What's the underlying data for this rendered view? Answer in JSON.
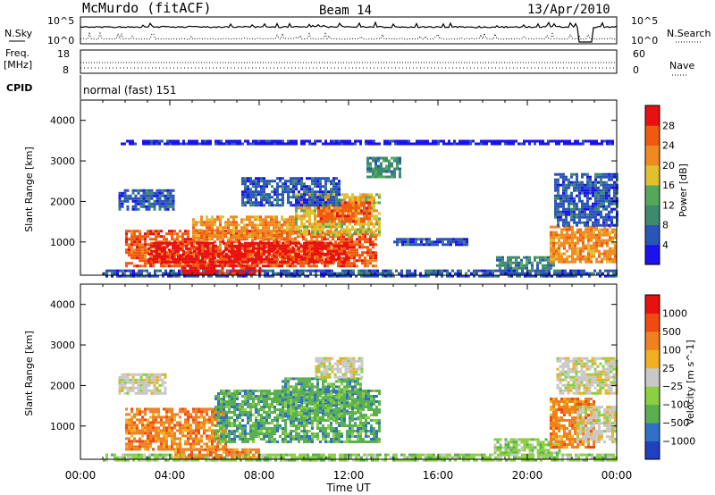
{
  "header": {
    "station": "McMurdo (fitACF)",
    "beam": "Beam 14",
    "date": "13/Apr/2010"
  },
  "top_panels": {
    "nsky": {
      "label": "N.Sky",
      "ticks": [
        "10^5",
        "10^0"
      ],
      "right_label": "N.Search",
      "right_ticks": [
        "10^5",
        "10^0"
      ]
    },
    "freq": {
      "label_line1": "Freq.",
      "label_line2": "[MHz]",
      "ticks": [
        "18",
        "8"
      ],
      "right_label": "Nave",
      "right_ticks": [
        "60",
        "0"
      ]
    },
    "cpid": {
      "label": "CPID",
      "value": "normal (fast) 151"
    }
  },
  "x_axis": {
    "label": "Time UT",
    "ticks": [
      "00:00",
      "04:00",
      "08:00",
      "12:00",
      "16:00",
      "20:00",
      "00:00"
    ]
  },
  "chart_data": [
    {
      "type": "heatmap",
      "name": "power",
      "xlabel": "Time UT",
      "ylabel": "Slant Range [km]",
      "xlim": [
        0,
        24
      ],
      "ylim": [
        180,
        4500
      ],
      "yticks": [
        "1000",
        "2000",
        "3000",
        "4000"
      ],
      "colorbar": {
        "label": "Power [dB]",
        "ticks": [
          "4",
          "8",
          "12",
          "16",
          "20",
          "24",
          "28"
        ],
        "colors": [
          "#1a12f0",
          "#2a54b8",
          "#3d8a6e",
          "#55a85a",
          "#e0c030",
          "#f08a20",
          "#f05a10",
          "#e81010"
        ]
      },
      "regions": [
        {
          "t0": 2.0,
          "t1": 13.2,
          "r0": 420,
          "r1": 1300,
          "level": 6
        },
        {
          "t0": 3.0,
          "t1": 12.0,
          "r0": 500,
          "r1": 1000,
          "level": 7
        },
        {
          "t0": 5.0,
          "t1": 9.6,
          "r0": 1100,
          "r1": 1650,
          "level": 5
        },
        {
          "t0": 9.6,
          "t1": 13.4,
          "r0": 1200,
          "r1": 2200,
          "level": 4
        },
        {
          "t0": 10.6,
          "t1": 13.0,
          "r0": 1500,
          "r1": 2000,
          "level": 6
        },
        {
          "t0": 1.7,
          "t1": 4.2,
          "r0": 1800,
          "r1": 2300,
          "level": 1
        },
        {
          "t0": 7.2,
          "t1": 11.6,
          "r0": 1900,
          "r1": 2600,
          "level": 1
        },
        {
          "t0": 12.8,
          "t1": 14.3,
          "r0": 2600,
          "r1": 3100,
          "level": 2
        },
        {
          "t0": 14.0,
          "t1": 17.3,
          "r0": 950,
          "r1": 1100,
          "level": 1
        },
        {
          "t0": 18.6,
          "t1": 21.2,
          "r0": 350,
          "r1": 650,
          "level": 2
        },
        {
          "t0": 21.0,
          "t1": 24.0,
          "r0": 500,
          "r1": 1400,
          "level": 5
        },
        {
          "t0": 21.2,
          "t1": 24.0,
          "r0": 1400,
          "r1": 2700,
          "level": 1
        },
        {
          "t0": 1.0,
          "t1": 24.0,
          "r0": 180,
          "r1": 320,
          "level": 1
        },
        {
          "t0": 4.5,
          "t1": 8.0,
          "r0": 200,
          "r1": 450,
          "level": 7
        },
        {
          "t0": 1.8,
          "t1": 23.8,
          "r0": 3420,
          "r1": 3520,
          "level": 0
        }
      ]
    },
    {
      "type": "heatmap",
      "name": "velocity",
      "xlabel": "Time UT",
      "ylabel": "Slant Range [km]",
      "xlim": [
        0,
        24
      ],
      "ylim": [
        180,
        4500
      ],
      "yticks": [
        "1000",
        "2000",
        "3000",
        "4000"
      ],
      "colorbar": {
        "label": "Velocity [m s^-1]",
        "ticks": [
          "1000",
          "500",
          "100",
          "25",
          "−25",
          "−100",
          "−500",
          "−1000"
        ],
        "colors": [
          "#2040c0",
          "#3070c8",
          "#5ab050",
          "#8ad040",
          "#c8c8c8",
          "#f0b020",
          "#f08020",
          "#f04a10",
          "#e81010"
        ]
      },
      "regions": [
        {
          "t0": 2.0,
          "t1": 6.5,
          "r0": 450,
          "r1": 1450,
          "level": 6
        },
        {
          "t0": 6.0,
          "t1": 13.4,
          "r0": 600,
          "r1": 1900,
          "level": 2
        },
        {
          "t0": 9.0,
          "t1": 12.5,
          "r0": 1200,
          "r1": 2200,
          "level": 2
        },
        {
          "t0": 10.5,
          "t1": 12.6,
          "r0": 2200,
          "r1": 2700,
          "level": 4
        },
        {
          "t0": 1.7,
          "t1": 3.8,
          "r0": 1800,
          "r1": 2300,
          "level": 4
        },
        {
          "t0": 18.5,
          "t1": 21.5,
          "r0": 350,
          "r1": 700,
          "level": 3
        },
        {
          "t0": 21.0,
          "t1": 23.0,
          "r0": 500,
          "r1": 1700,
          "level": 6
        },
        {
          "t0": 22.2,
          "t1": 24.0,
          "r0": 600,
          "r1": 1500,
          "level": 4
        },
        {
          "t0": 21.3,
          "t1": 24.0,
          "r0": 1800,
          "r1": 2700,
          "level": 4
        },
        {
          "t0": 1.0,
          "t1": 24.0,
          "r0": 180,
          "r1": 320,
          "level": 3
        },
        {
          "t0": 4.2,
          "t1": 8.0,
          "r0": 220,
          "r1": 450,
          "level": 6
        }
      ]
    }
  ]
}
